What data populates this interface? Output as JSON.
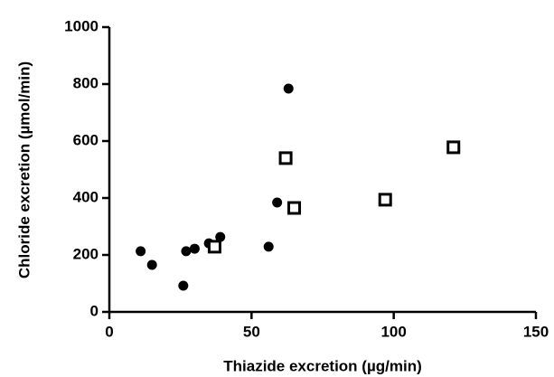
{
  "chart_data": {
    "type": "scatter",
    "x_label": "Thiazide excretion (µg/min)",
    "y_label": "Chloride excretion (µmol/min)",
    "xlim": [
      0,
      150
    ],
    "xticks": [
      0,
      50,
      100,
      150
    ],
    "ylim": [
      0,
      1000
    ],
    "yticks": [
      0,
      200,
      400,
      600,
      800,
      1000
    ],
    "grid": false,
    "series": [
      {
        "marker": "circle",
        "color": "#000000",
        "x": [
          11,
          15,
          26,
          27,
          30,
          35,
          39,
          56,
          59,
          63
        ],
        "values": [
          213,
          165,
          92,
          213,
          222,
          241,
          263,
          229,
          384,
          784
        ]
      },
      {
        "marker": "square",
        "color": "#000000",
        "x": [
          37,
          62,
          65,
          97,
          121
        ],
        "values": [
          229,
          540,
          365,
          394,
          578
        ]
      }
    ]
  }
}
